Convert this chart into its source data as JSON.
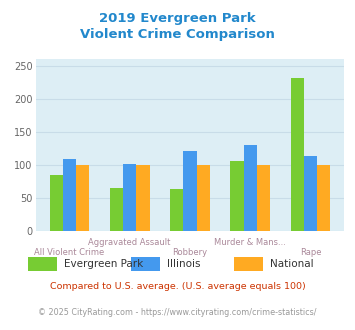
{
  "title_line1": "2019 Evergreen Park",
  "title_line2": "Violent Crime Comparison",
  "title_color": "#2288cc",
  "categories": [
    "All Violent Crime",
    "Aggravated Assault",
    "Robbery",
    "Murder & Mans...",
    "Rape"
  ],
  "xtick_top": [
    "",
    "Aggravated Assault",
    "",
    "Murder & Mans...",
    ""
  ],
  "xtick_bot": [
    "All Violent Crime",
    "",
    "Robbery",
    "",
    "Rape"
  ],
  "evergreen_park": [
    85,
    65,
    63,
    106,
    232
  ],
  "illinois": [
    109,
    101,
    121,
    131,
    113
  ],
  "national": [
    100,
    100,
    100,
    100,
    100
  ],
  "bar_colors": [
    "#77cc33",
    "#4499ee",
    "#ffaa22"
  ],
  "ylim": [
    0,
    260
  ],
  "yticks": [
    0,
    50,
    100,
    150,
    200,
    250
  ],
  "grid_color": "#c8dce8",
  "bg_color": "#ddeef5",
  "legend_labels": [
    "Evergreen Park",
    "Illinois",
    "National"
  ],
  "footnote1": "Compared to U.S. average. (U.S. average equals 100)",
  "footnote2": "© 2025 CityRating.com - https://www.cityrating.com/crime-statistics/",
  "footnote1_color": "#cc3300",
  "footnote2_color": "#999999",
  "xtick_color": "#aa8899"
}
